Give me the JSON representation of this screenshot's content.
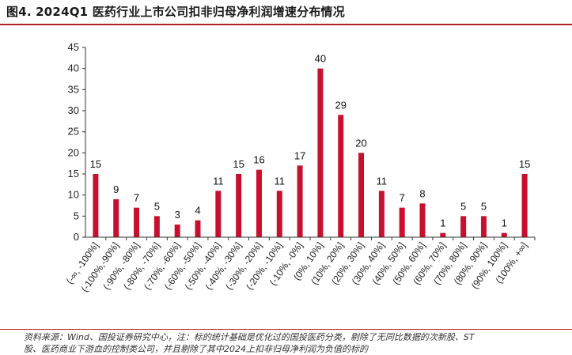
{
  "title": "图4. 2024Q1 医药行业上市公司扣非归母净利润增速分布情况",
  "source_lines": [
    "资料来源：Wind、国投证券研究中心，注：标的统计基础是优化过的国投医药分类，剔除了无同比数据的次新股、ST",
    "股、医药商业下游血的控制类公司，并且剔除了其中2024上扣非归母净利润为负值的标的"
  ],
  "chart_data": {
    "type": "bar",
    "title": "图4. 2024Q1 医药行业上市公司扣非归母净利润增速分布情况",
    "xlabel": "",
    "ylabel": "",
    "ylim": [
      0,
      45
    ],
    "yticks": [
      0,
      5,
      10,
      15,
      20,
      25,
      30,
      35,
      40,
      45
    ],
    "grid": false,
    "legend": "none",
    "bar_color": "#c8102e",
    "categories": [
      "(-∞, -100%]",
      "(-100%,-90%]",
      "(-90%, -80%]",
      "(-80%, -70%]",
      "(-70%, -60%]",
      "(-60%, -50%]",
      "(-50%, -40%]",
      "(-40%, -30%]",
      "(-30%, -20%]",
      "(-20%, -10%]",
      "(-10%, -0%]",
      "(0%, 10%]",
      "(10%, 20%]",
      "(20%, 30%]",
      "(30%, 40%]",
      "(40%, 50%]",
      "(50%, 60%]",
      "(60%, 70%]",
      "(70%, 80%]",
      "(80%, 90%]",
      "(90%, 100%]",
      "(100%, +∞]"
    ],
    "values": [
      15,
      9,
      7,
      5,
      3,
      4,
      11,
      15,
      16,
      11,
      17,
      40,
      29,
      20,
      11,
      7,
      8,
      1,
      5,
      5,
      1,
      15
    ]
  }
}
